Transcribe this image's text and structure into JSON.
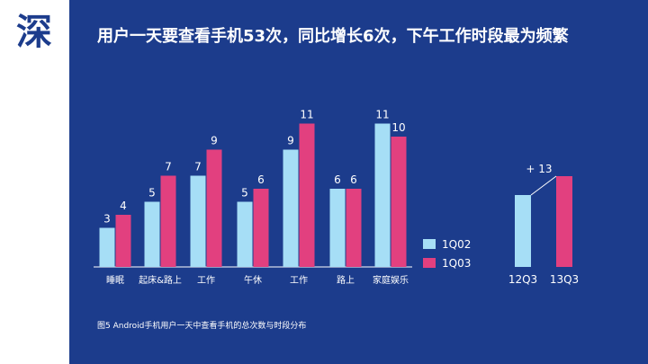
{
  "side_label": "深",
  "title": "用户一天要查看手机53次，同比增长6次，下午工作时段最为频繁",
  "caption": "图5 Android手机用户一天中查看手机的总次数与时段分布",
  "colors": {
    "background": "#1c3c8c",
    "series_1q02": "#a6def6",
    "series_1q03": "#e2407f",
    "text": "#ffffff"
  },
  "chart_data": [
    {
      "type": "bar",
      "categories": [
        "睡眠",
        "起床&路上",
        "工作",
        "午休",
        "工作",
        "路上",
        "家庭娱乐"
      ],
      "series": [
        {
          "name": "1Q02",
          "values": [
            3,
            5,
            7,
            5,
            9,
            6,
            11
          ]
        },
        {
          "name": "1Q03",
          "values": [
            4,
            7,
            9,
            6,
            11,
            6,
            10
          ]
        }
      ],
      "legend": "right",
      "grid": false
    },
    {
      "type": "bar",
      "categories": [
        "12Q3",
        "13Q3"
      ],
      "annotation": "+ 13",
      "grid": false
    }
  ]
}
